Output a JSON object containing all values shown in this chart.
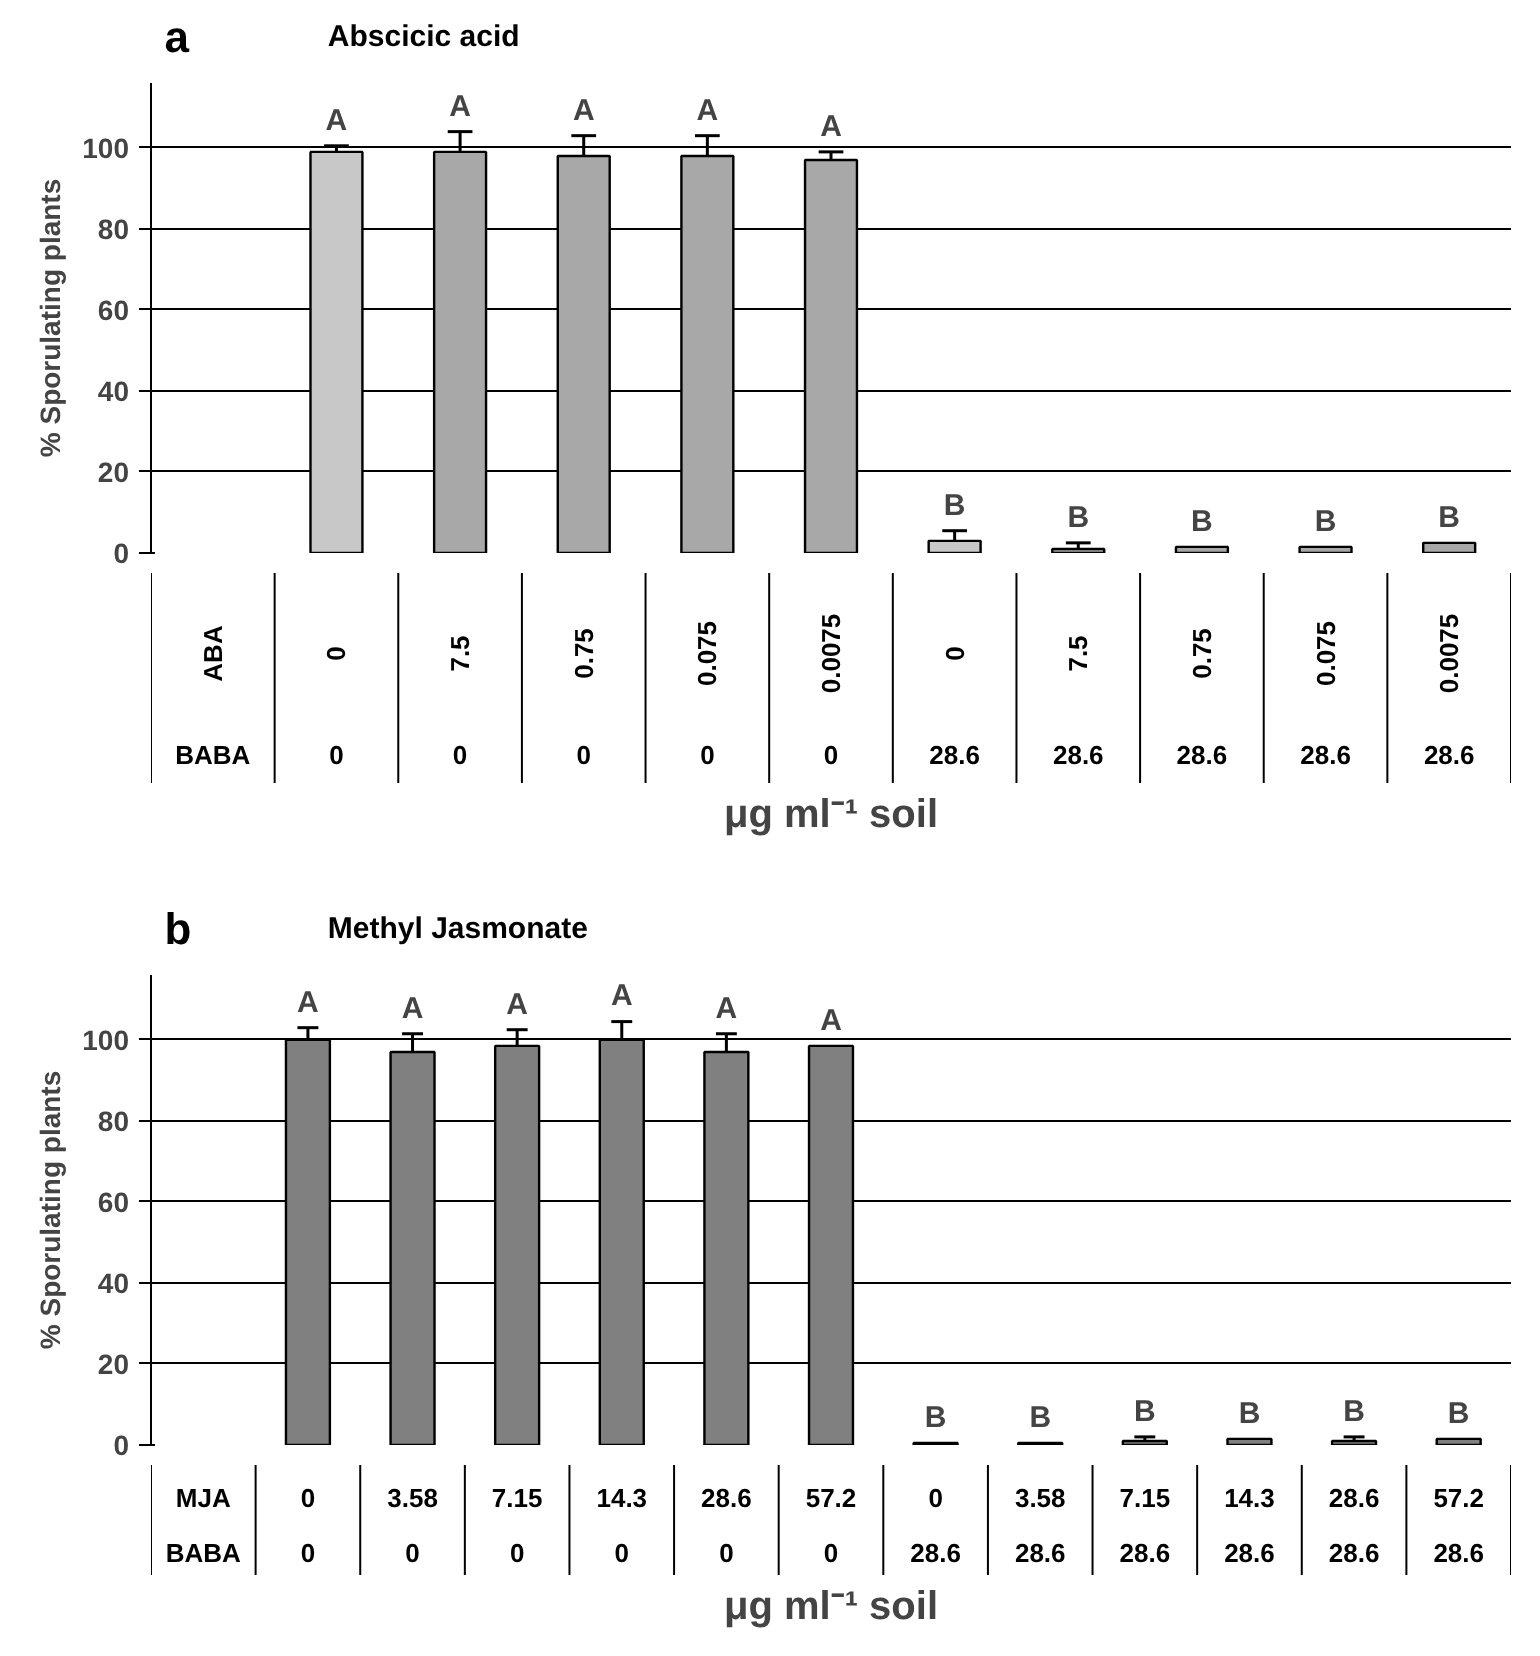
{
  "chart_data": [
    {
      "type": "bar",
      "title": "Abscicic acid",
      "ylabel": "% Sporulating plants",
      "xlabel": "μg ml⁻¹ soil",
      "categories": [
        "ABA",
        "0",
        "7.5",
        "0.75",
        "0.075",
        "0.0075",
        "0",
        "7.5",
        "0.75",
        "0.075",
        "0.0075"
      ],
      "values": [
        null,
        99,
        99,
        98,
        98,
        97,
        3,
        1,
        1.5,
        1.5,
        2.5
      ],
      "colors": [
        "#ffffff",
        "#c8c8c8",
        "#a8a8a8",
        "#a8a8a8",
        "#a8a8a8",
        "#a8a8a8",
        "#c8c8c8",
        "#a8a8a8",
        "#a8a8a8",
        "#a8a8a8",
        "#a8a8a8"
      ],
      "errors": [
        null,
        [
          99,
          100.5
        ],
        [
          99,
          104
        ],
        [
          98,
          103
        ],
        [
          98,
          103
        ],
        [
          97,
          99
        ],
        [
          3,
          5.5
        ],
        [
          1,
          2.5
        ],
        null,
        null,
        null
      ],
      "value_labels": [
        null,
        "A",
        "A",
        "A",
        "A",
        "A",
        "B",
        "B",
        "B",
        "B",
        "B"
      ],
      "annotations": [
        "a",
        "BABA",
        "0",
        "0",
        "0",
        "0",
        "0",
        "28.6",
        "28.6",
        "28.6",
        "28.6",
        "28.6"
      ],
      "ylim": [
        0,
        116
      ],
      "yticks": [
        0,
        20,
        40,
        60,
        80,
        100
      ],
      "grid": "y"
    },
    {
      "type": "bar",
      "title": "Methyl Jasmonate",
      "ylabel": "% Sporulating plants",
      "xlabel": "μg ml⁻¹ soil",
      "categories": [
        "MJA",
        "0",
        "3.58",
        "7.15",
        "14.3",
        "28.6",
        "57.2",
        "0",
        "3.58",
        "7.15",
        "14.3",
        "28.6",
        "57.2"
      ],
      "values": [
        null,
        100,
        97,
        98.5,
        100,
        97,
        98.5,
        0.5,
        0.5,
        1,
        1.5,
        1,
        1.5
      ],
      "color": "#808080",
      "errors": [
        null,
        [
          100,
          103
        ],
        [
          97,
          101.5
        ],
        [
          98.5,
          102.5
        ],
        [
          100,
          104.5
        ],
        [
          97,
          101.5
        ],
        null,
        null,
        null,
        [
          1,
          2
        ],
        null,
        [
          1,
          2
        ],
        null
      ],
      "value_labels": [
        null,
        "A",
        "A",
        "A",
        "A",
        "A",
        "A",
        "B",
        "B",
        "B",
        "B",
        "B",
        "B"
      ],
      "annotations": [
        "b",
        "BABA",
        "0",
        "0",
        "0",
        "0",
        "0",
        "0",
        "28.6",
        "28.6",
        "28.6",
        "28.6",
        "28.6",
        "28.6"
      ],
      "ylim": [
        0,
        116
      ],
      "yticks": [
        0,
        20,
        40,
        60,
        80,
        100
      ],
      "grid": "y"
    }
  ]
}
